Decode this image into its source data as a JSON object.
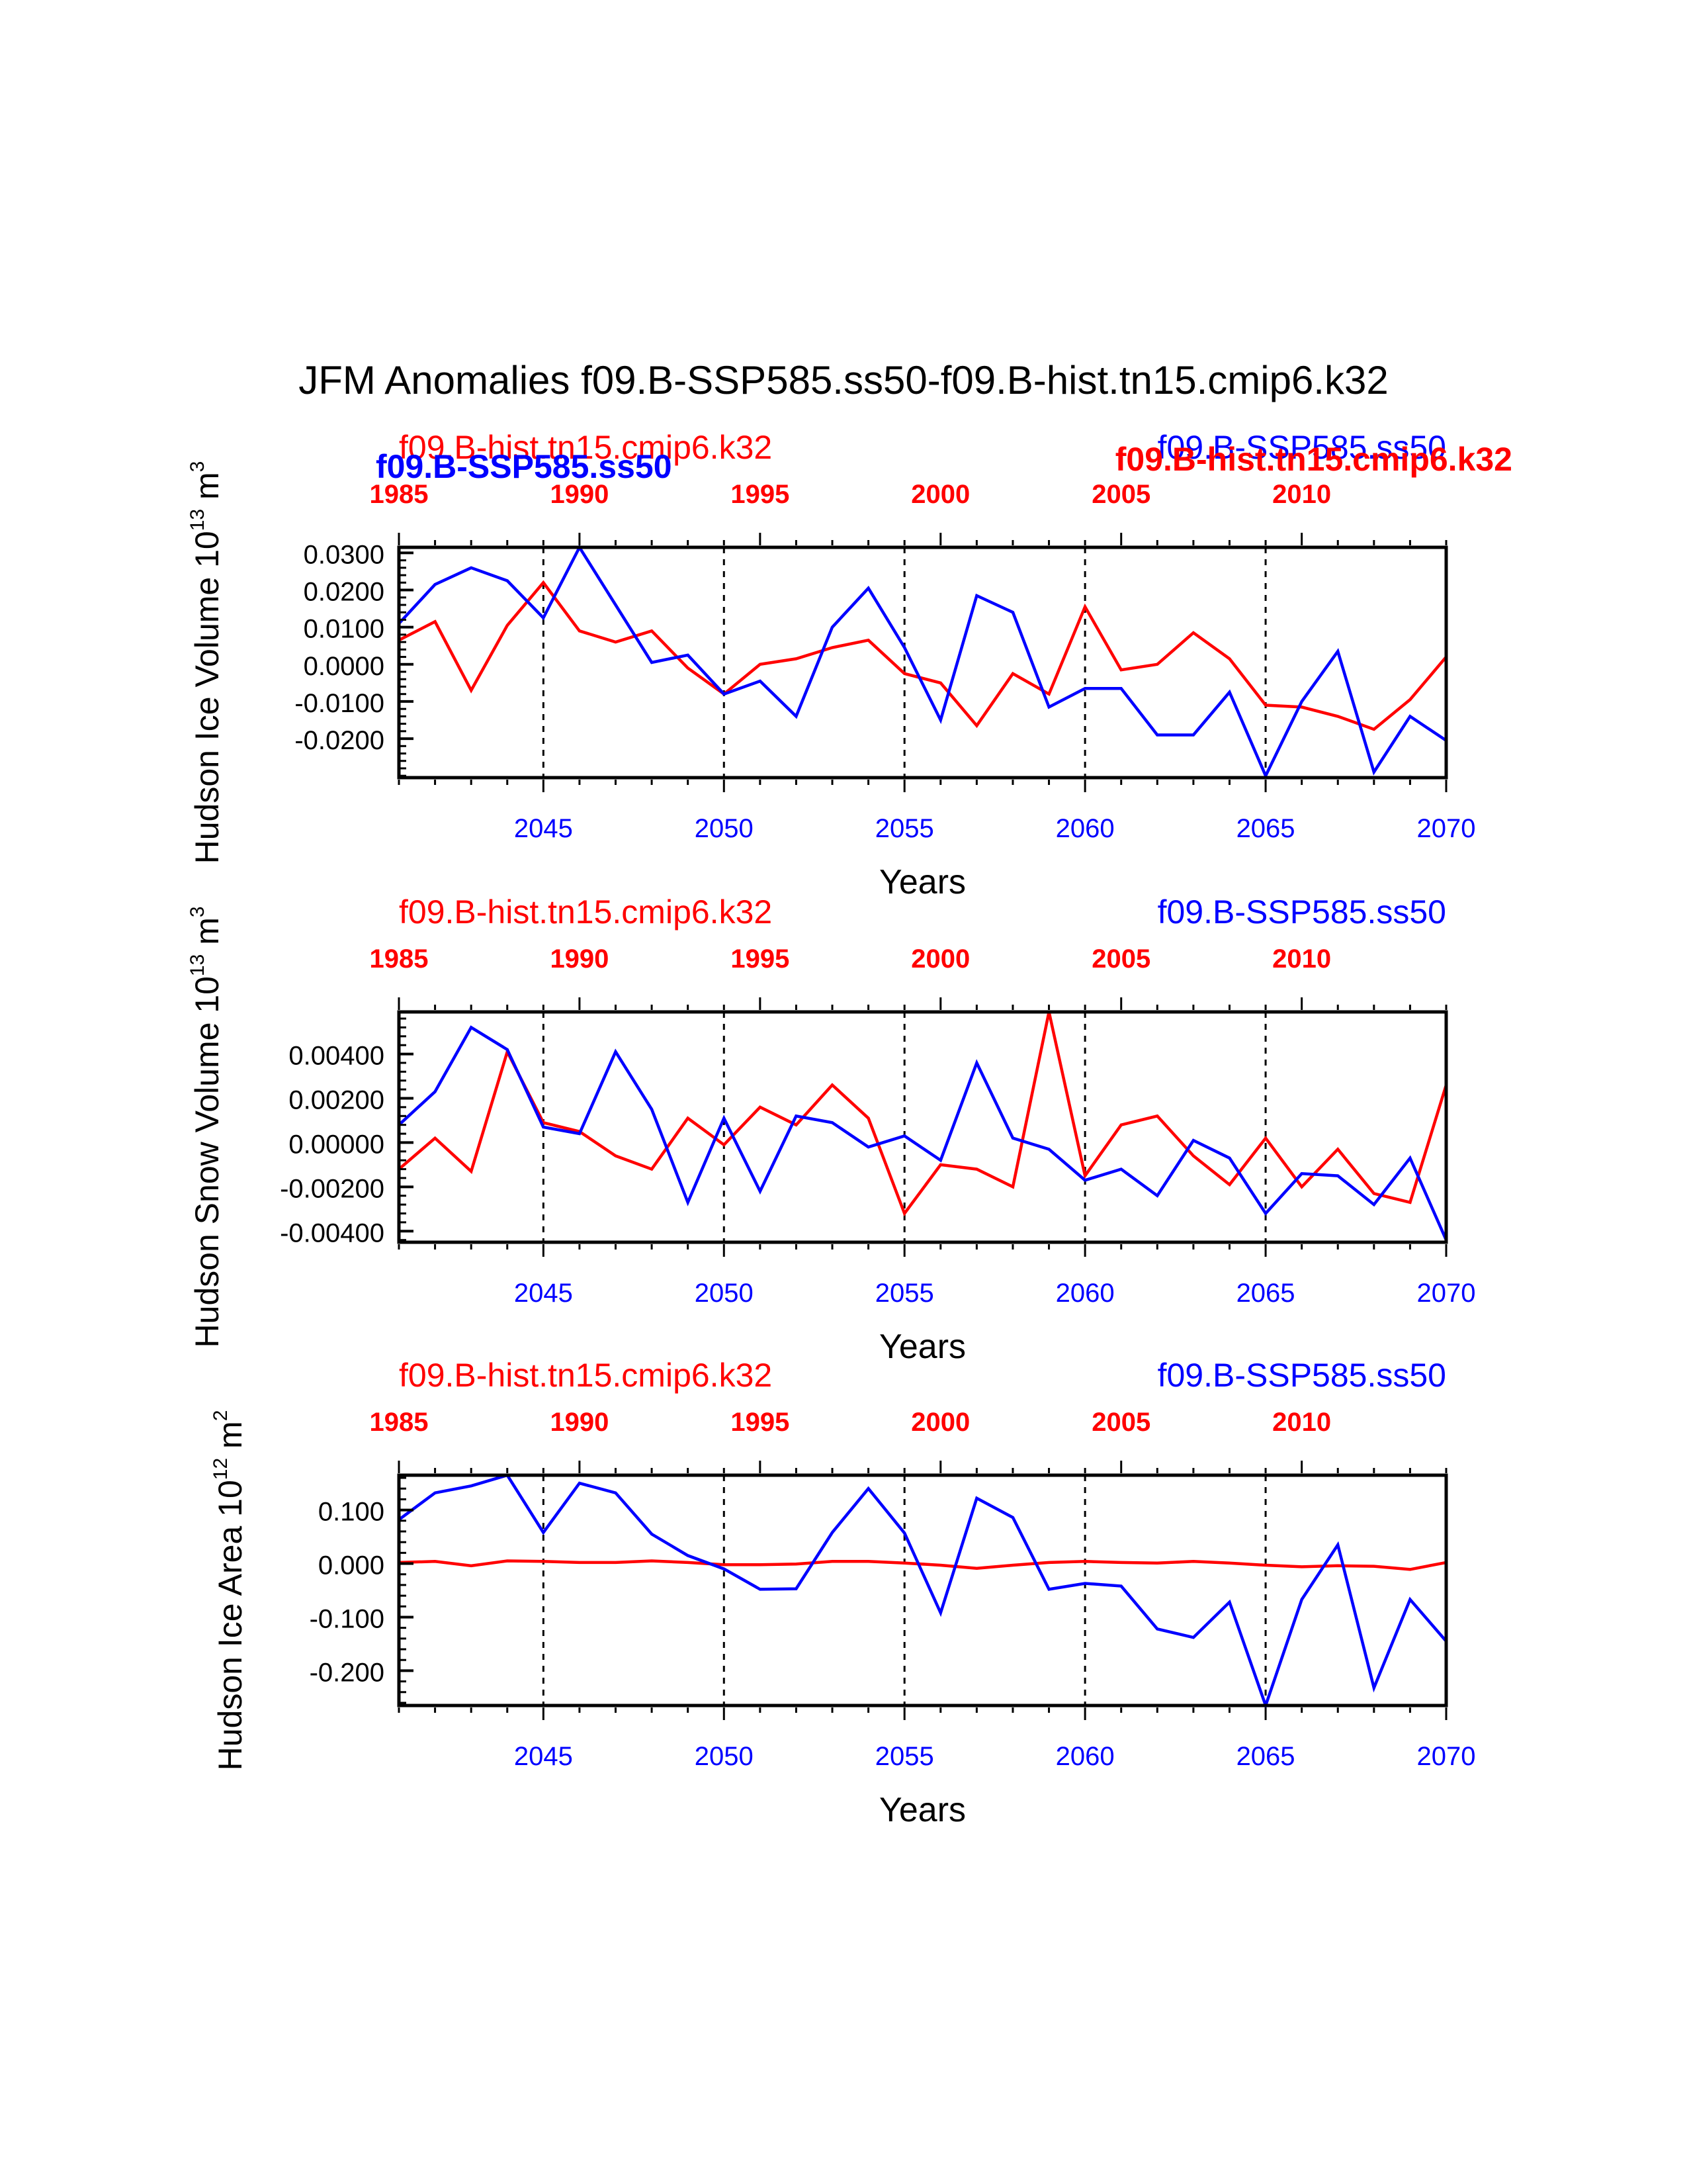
{
  "title": "JFM Anomalies f09.B-SSP585.ss50-f09.B-hist.tn15.cmip6.k32",
  "colors": {
    "hist": "#ff0000",
    "ssp": "#0000ff",
    "axis": "#000000"
  },
  "chart_data": [
    {
      "type": "line",
      "ylabel": "Hudson Ice Volume 10^13 m^3",
      "ylabel_base": "Hudson Ice Volume 10",
      "ylabel_exp": "13",
      "ylabel_unit": "m",
      "ylabel_unit_exp": "3",
      "xlabel": "Years",
      "ylim": [
        -0.0305,
        0.0315
      ],
      "yticks": [
        0.03,
        0.02,
        0.01,
        0.0,
        -0.01,
        -0.02
      ],
      "ytick_labels": [
        "0.0300",
        "0.0200",
        "0.0100",
        "0.0000",
        "-0.0100",
        "-0.0200"
      ],
      "top_series_labels": {
        "hist": "f09.B-hist.tn15.cmip6.k32",
        "ssp": "f09.B-SSP585.ss50",
        "hist_bold": "f09.B-hist.tn15.cmip6.k32",
        "ssp_bold": "f09.B-SSP585.ss50"
      },
      "series": [
        {
          "name": "f09.B-SSP585.ss50",
          "x": [
            2041,
            2042,
            2043,
            2044,
            2045,
            2046,
            2047,
            2048,
            2049,
            2050,
            2051,
            2052,
            2053,
            2054,
            2055,
            2056,
            2057,
            2058,
            2059,
            2060,
            2061,
            2062,
            2063,
            2064,
            2065,
            2066,
            2067,
            2068,
            2069,
            2070
          ],
          "values": [
            0.011,
            0.0215,
            0.026,
            0.0225,
            0.0125,
            0.0315,
            0.016,
            0.0005,
            0.0025,
            -0.008,
            -0.0045,
            -0.014,
            0.01,
            0.0205,
            0.0045,
            -0.015,
            0.0185,
            0.014,
            -0.0115,
            -0.0065,
            -0.0065,
            -0.019,
            -0.019,
            -0.0075,
            -0.03,
            -0.01,
            0.0035,
            -0.029,
            -0.014,
            -0.0205
          ]
        },
        {
          "name": "f09.B-hist.tn15.cmip6.k32",
          "x": [
            2041,
            2042,
            2043,
            2044,
            2045,
            2046,
            2047,
            2048,
            2049,
            2050,
            2051,
            2052,
            2053,
            2054,
            2055,
            2056,
            2057,
            2058,
            2059,
            2060,
            2061,
            2062,
            2063,
            2064,
            2065,
            2066,
            2067,
            2068,
            2069,
            2070
          ],
          "values": [
            0.0065,
            0.0115,
            -0.007,
            0.0105,
            0.022,
            0.009,
            0.006,
            0.009,
            -0.001,
            -0.008,
            0.0,
            0.0015,
            0.0045,
            0.0065,
            -0.0025,
            -0.005,
            -0.0165,
            -0.0025,
            -0.008,
            0.0155,
            -0.0015,
            0.0,
            0.0085,
            0.0015,
            -0.011,
            -0.0115,
            -0.014,
            -0.0175,
            -0.0095,
            0.002
          ]
        }
      ]
    },
    {
      "type": "line",
      "ylabel": "Hudson Snow Volume 10^13 m^3",
      "ylabel_base": "Hudson Snow Volume 10",
      "ylabel_exp": "13",
      "ylabel_unit": "m",
      "ylabel_unit_exp": "3",
      "xlabel": "Years",
      "ylim": [
        -0.0045,
        0.0059
      ],
      "yticks": [
        0.004,
        0.002,
        0.0,
        -0.002,
        -0.004
      ],
      "ytick_labels": [
        "0.00400",
        "0.00200",
        "0.00000",
        "-0.00200",
        "-0.00400"
      ],
      "top_series_labels": {
        "hist": "f09.B-hist.tn15.cmip6.k32",
        "ssp": "f09.B-SSP585.ss50"
      },
      "series": [
        {
          "name": "f09.B-SSP585.ss50",
          "x": [
            2041,
            2042,
            2043,
            2044,
            2045,
            2046,
            2047,
            2048,
            2049,
            2050,
            2051,
            2052,
            2053,
            2054,
            2055,
            2056,
            2057,
            2058,
            2059,
            2060,
            2061,
            2062,
            2063,
            2064,
            2065,
            2066,
            2067,
            2068,
            2069,
            2070
          ],
          "values": [
            0.0008,
            0.0023,
            0.0052,
            0.0042,
            0.0007,
            0.0004,
            0.0041,
            0.0015,
            -0.0027,
            0.0011,
            -0.0022,
            0.0012,
            0.0009,
            -0.0002,
            0.0003,
            -0.0008,
            0.0036,
            0.0002,
            -0.0003,
            -0.0017,
            -0.0012,
            -0.0024,
            0.0001,
            -0.0007,
            -0.0032,
            -0.0014,
            -0.0015,
            -0.0028,
            -0.0007,
            -0.0044
          ]
        },
        {
          "name": "f09.B-hist.tn15.cmip6.k32",
          "x": [
            2041,
            2042,
            2043,
            2044,
            2045,
            2046,
            2047,
            2048,
            2049,
            2050,
            2051,
            2052,
            2053,
            2054,
            2055,
            2056,
            2057,
            2058,
            2059,
            2060,
            2061,
            2062,
            2063,
            2064,
            2065,
            2066,
            2067,
            2068,
            2069,
            2070
          ],
          "values": [
            -0.0012,
            0.0002,
            -0.0013,
            0.0041,
            0.0009,
            0.0005,
            -0.0006,
            -0.0012,
            0.0011,
            -0.0001,
            0.0016,
            0.0008,
            0.0026,
            0.0011,
            -0.0032,
            -0.001,
            -0.0012,
            -0.002,
            0.0059,
            -0.0015,
            0.0008,
            0.0012,
            -0.0006,
            -0.0019,
            0.0002,
            -0.002,
            -0.0003,
            -0.0023,
            -0.0027,
            0.0026
          ]
        }
      ]
    },
    {
      "type": "line",
      "ylabel": "Hudson Ice Area 10^12 m^2",
      "ylabel_base": "Hudson Ice Area 10",
      "ylabel_exp": "12",
      "ylabel_unit": "m",
      "ylabel_unit_exp": "2",
      "xlabel": "Years",
      "ylim": [
        -0.265,
        0.165
      ],
      "yticks": [
        0.1,
        0.0,
        -0.1,
        -0.2
      ],
      "ytick_labels": [
        "0.100",
        "0.000",
        "-0.100",
        "-0.200"
      ],
      "top_series_labels": {
        "hist": "f09.B-hist.tn15.cmip6.k32",
        "ssp": "f09.B-SSP585.ss50"
      },
      "series": [
        {
          "name": "f09.B-SSP585.ss50",
          "x": [
            2041,
            2042,
            2043,
            2044,
            2045,
            2046,
            2047,
            2048,
            2049,
            2050,
            2051,
            2052,
            2053,
            2054,
            2055,
            2056,
            2057,
            2058,
            2059,
            2060,
            2061,
            2062,
            2063,
            2064,
            2065,
            2066,
            2067,
            2068,
            2069,
            2070
          ],
          "values": [
            0.082,
            0.132,
            0.145,
            0.165,
            0.058,
            0.15,
            0.132,
            0.055,
            0.015,
            -0.01,
            -0.048,
            -0.047,
            0.058,
            0.14,
            0.057,
            -0.092,
            0.122,
            0.086,
            -0.048,
            -0.037,
            -0.042,
            -0.122,
            -0.138,
            -0.072,
            -0.265,
            -0.067,
            0.035,
            -0.232,
            -0.067,
            -0.145
          ]
        },
        {
          "name": "f09.B-hist.tn15.cmip6.k32",
          "x": [
            2041,
            2042,
            2043,
            2044,
            2045,
            2046,
            2047,
            2048,
            2049,
            2050,
            2051,
            2052,
            2053,
            2054,
            2055,
            2056,
            2057,
            2058,
            2059,
            2060,
            2061,
            2062,
            2063,
            2064,
            2065,
            2066,
            2067,
            2068,
            2069,
            2070
          ],
          "values": [
            0.002,
            0.004,
            -0.004,
            0.005,
            0.004,
            0.002,
            0.002,
            0.005,
            0.002,
            -0.002,
            -0.002,
            -0.001,
            0.004,
            0.004,
            0.001,
            -0.003,
            -0.009,
            -0.003,
            0.002,
            0.004,
            0.002,
            0.001,
            0.004,
            0.001,
            -0.003,
            -0.006,
            -0.004,
            -0.005,
            -0.011,
            0.002
          ]
        }
      ]
    }
  ],
  "axes_common": {
    "bottom_xticks": [
      2045,
      2050,
      2055,
      2060,
      2065,
      2070
    ],
    "bottom_xlabels": [
      "2045",
      "2050",
      "2055",
      "2060",
      "2065",
      "2070"
    ],
    "top_xticks": [
      1985,
      1990,
      1995,
      2000,
      2005,
      2010
    ],
    "top_xlabels": [
      "1985",
      "1990",
      "1995",
      "2000",
      "2005",
      "2010"
    ],
    "xlim_bottom": [
      2041,
      2070
    ],
    "xlim_top": [
      1985,
      2014
    ],
    "vlines_at": [
      2045,
      2050,
      2055,
      2060,
      2065
    ],
    "grid": false
  }
}
